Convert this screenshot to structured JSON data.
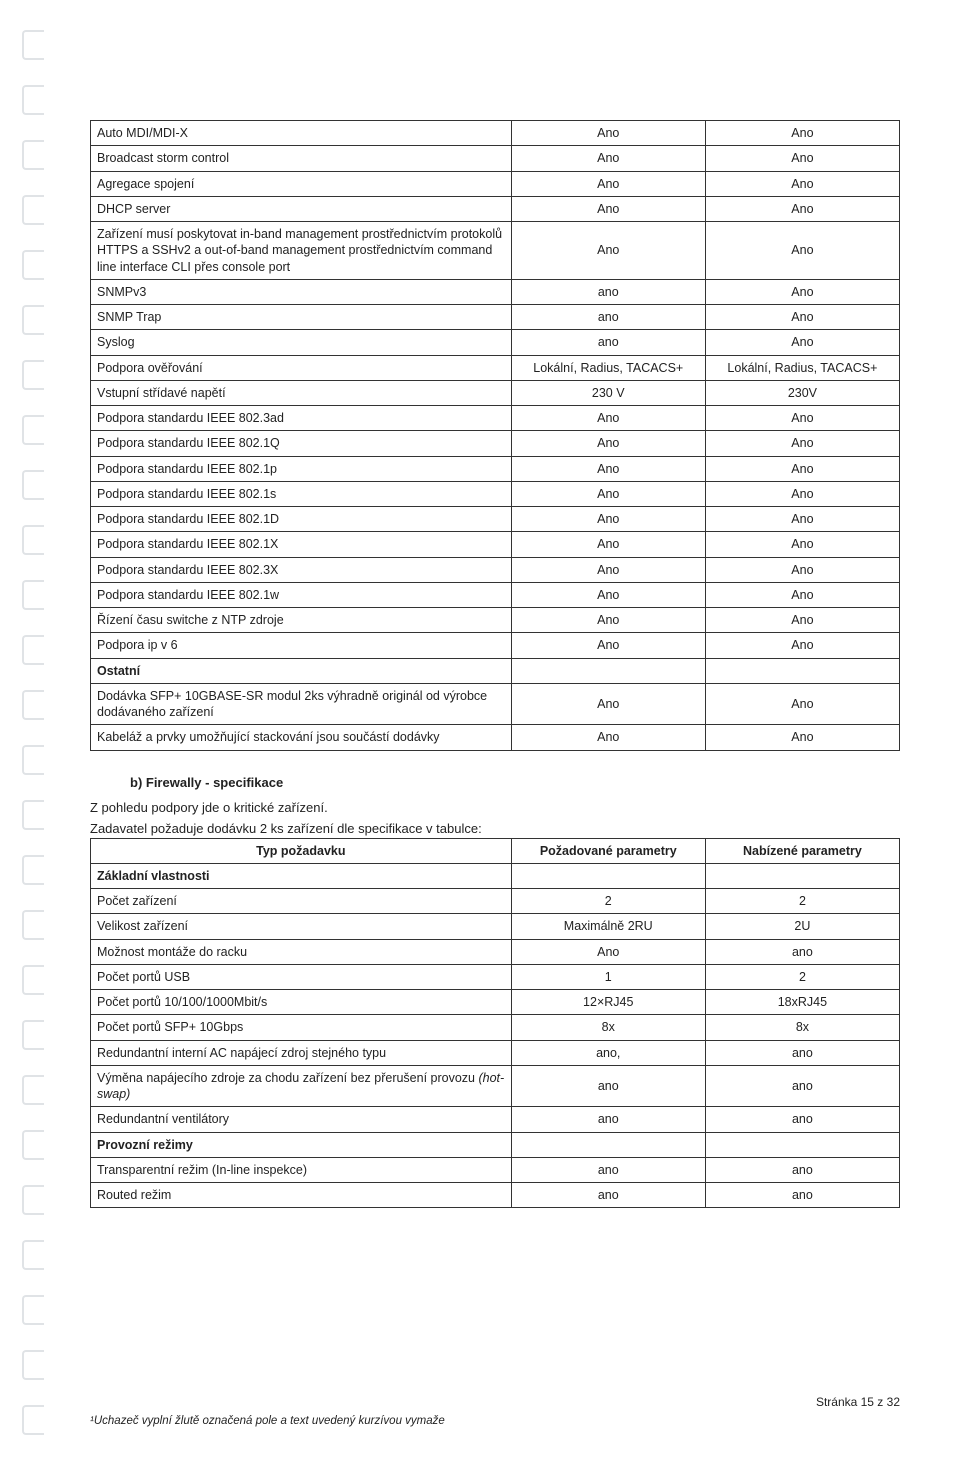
{
  "binder": {
    "count": 26,
    "top_start": 10,
    "spacing": 55
  },
  "colors": {
    "text": "#222222",
    "border": "#333333",
    "binder": "#c7cdd3",
    "background": "#ffffff"
  },
  "table1": {
    "col_widths_pct": [
      52,
      24,
      24
    ],
    "rows": [
      {
        "c1": "Auto MDI/MDI-X",
        "c2": "Ano",
        "c3": "Ano"
      },
      {
        "c1": "Broadcast storm control",
        "c2": "Ano",
        "c3": "Ano"
      },
      {
        "c1": "Agregace spojení",
        "c2": "Ano",
        "c3": "Ano"
      },
      {
        "c1": "DHCP server",
        "c2": "Ano",
        "c3": "Ano"
      },
      {
        "c1": "Zařízení musí poskytovat in-band management prostřednictvím protokolů HTTPS a SSHv2 a out-of-band management prostřednictvím command line interface CLI přes console port",
        "c2": "Ano",
        "c3": "Ano"
      },
      {
        "c1": "SNMPv3",
        "c2": "ano",
        "c3": "Ano"
      },
      {
        "c1": "SNMP Trap",
        "c2": "ano",
        "c3": "Ano"
      },
      {
        "c1": "Syslog",
        "c2": "ano",
        "c3": "Ano"
      },
      {
        "c1": "Podpora ověřování",
        "c2": "Lokální, Radius, TACACS+",
        "c3": "Lokální, Radius, TACACS+"
      },
      {
        "c1": "Vstupní střídavé napětí",
        "c2": "230 V",
        "c3": "230V"
      },
      {
        "c1": "Podpora standardu IEEE 802.3ad",
        "c2": "Ano",
        "c3": "Ano"
      },
      {
        "c1": "Podpora standardu IEEE 802.1Q",
        "c2": "Ano",
        "c3": "Ano"
      },
      {
        "c1": "Podpora standardu IEEE 802.1p",
        "c2": "Ano",
        "c3": "Ano"
      },
      {
        "c1": "Podpora standardu IEEE 802.1s",
        "c2": "Ano",
        "c3": "Ano"
      },
      {
        "c1": "Podpora standardu IEEE 802.1D",
        "c2": "Ano",
        "c3": "Ano"
      },
      {
        "c1": "Podpora standardu IEEE 802.1X",
        "c2": "Ano",
        "c3": "Ano"
      },
      {
        "c1": "Podpora standardu IEEE 802.3X",
        "c2": "Ano",
        "c3": "Ano"
      },
      {
        "c1": "Podpora standardu IEEE 802.1w",
        "c2": "Ano",
        "c3": "Ano"
      },
      {
        "c1": "Řízení času switche z NTP zdroje",
        "c2": "Ano",
        "c3": "Ano"
      },
      {
        "c1": "Podpora ip v 6",
        "c2": "Ano",
        "c3": "Ano"
      },
      {
        "c1": "Ostatní",
        "c2": "",
        "c3": "",
        "section": true
      },
      {
        "c1": "Dodávka SFP+ 10GBASE-SR modul 2ks výhradně originál od výrobce dodávaného zařízení",
        "c2": "Ano",
        "c3": "Ano"
      },
      {
        "c1": "Kabeláž a prvky umožňující stackování jsou součástí dodávky",
        "c2": "Ano",
        "c3": "Ano"
      }
    ]
  },
  "heading_b": "b)  Firewally - specifikace",
  "intro_line1": "Z pohledu podpory jde o kritické zařízení.",
  "intro_line2": "Zadavatel požaduje dodávku 2 ks zařízení dle specifikace v tabulce:",
  "table2": {
    "col_widths_pct": [
      52,
      24,
      24
    ],
    "header": {
      "c1": "Typ požadavku",
      "c2": "Požadované parametry",
      "c3": "Nabízené parametry"
    },
    "rows": [
      {
        "c1": "Základní vlastnosti",
        "c2": "",
        "c3": "",
        "section": true
      },
      {
        "c1": "Počet zařízení",
        "c2": "2",
        "c3": "2"
      },
      {
        "c1": "Velikost zařízení",
        "c2": "Maximálně 2RU",
        "c3": "2U"
      },
      {
        "c1": "Možnost montáže do racku",
        "c2": "Ano",
        "c3": "ano"
      },
      {
        "c1": "Počet portů USB",
        "c2": "1",
        "c3": "2"
      },
      {
        "c1": "Počet portů 10/100/1000Mbit/s",
        "c2": "12×RJ45",
        "c3": "18xRJ45"
      },
      {
        "c1": "Počet portů SFP+ 10Gbps",
        "c2": "8x",
        "c3": "8x"
      },
      {
        "c1": "Redundantní interní AC napájecí zdroj stejného typu",
        "c2": "ano,",
        "c3": "ano"
      },
      {
        "c1_html": "Výměna napájecího zdroje za chodu zařízení bez přerušení provozu <span class=\"italic\">(hot-swap)</span>",
        "c2": "ano",
        "c3": "ano"
      },
      {
        "c1": "Redundantní ventilátory",
        "c2": "ano",
        "c3": "ano"
      },
      {
        "c1": "Provozní režimy",
        "c2": "",
        "c3": "",
        "section": true
      },
      {
        "c1": "Transparentní režim (In-line inspekce)",
        "c2": "ano",
        "c3": "ano"
      },
      {
        "c1": "Routed režim",
        "c2": "ano",
        "c3": "ano"
      }
    ]
  },
  "footer": {
    "page_label": "Stránka 15 z 32",
    "note_prefix": "¹",
    "note_text": "Uchazeč vyplní žlutě označená pole a text uvedený kurzívou vymaže"
  }
}
